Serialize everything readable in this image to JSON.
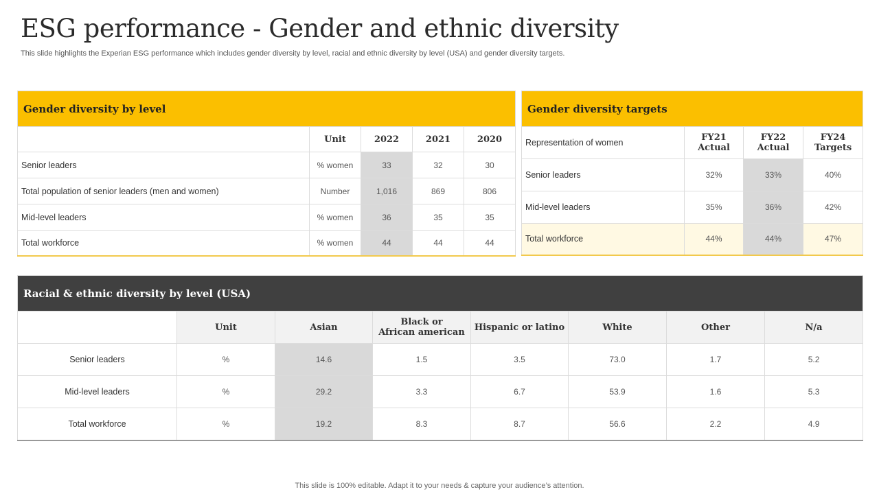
{
  "page": {
    "title": "ESG performance - Gender and ethnic diversity",
    "subtitle": "This slide highlights the Experian ESG performance which includes gender diversity by level, racial and ethnic diversity by level (USA) and gender diversity targets.",
    "footer": "This slide is 100% editable. Adapt it to your needs & capture your audience’s attention."
  },
  "gender_level": {
    "title": "Gender diversity by level",
    "columns": [
      "Unit",
      "2022",
      "2021",
      "2020"
    ],
    "rows": [
      {
        "label": "Senior leaders",
        "unit": "% women",
        "v2022": "33",
        "v2021": "32",
        "v2020": "30"
      },
      {
        "label": "Total population of senior leaders (men and women)",
        "unit": "Number",
        "v2022": "1,016",
        "v2021": "869",
        "v2020": "806"
      },
      {
        "label": "Mid-level  leaders",
        "unit": "% women",
        "v2022": "36",
        "v2021": "35",
        "v2020": "35"
      },
      {
        "label": "Total workforce",
        "unit": "% women",
        "v2022": "44",
        "v2021": "44",
        "v2020": "44"
      }
    ]
  },
  "gender_targets": {
    "title": "Gender diversity targets",
    "row_header": "Representation of women",
    "columns": [
      {
        "line1": "FY21",
        "line2": "Actual"
      },
      {
        "line1": "FY22",
        "line2": "Actual"
      },
      {
        "line1": "FY24",
        "line2": "Targets"
      }
    ],
    "rows": [
      {
        "label": "Senior leaders",
        "fy21": "32%",
        "fy22": "33%",
        "fy24": "40%"
      },
      {
        "label": "Mid-level  leaders",
        "fy21": "35%",
        "fy22": "36%",
        "fy24": "42%"
      },
      {
        "label": "Total workforce",
        "fy21": "44%",
        "fy22": "44%",
        "fy24": "47%"
      }
    ]
  },
  "racial": {
    "title": "Racial & ethnic diversity by level (USA)",
    "columns": [
      "Unit",
      "Asian",
      "Black or\nAfrican american",
      "Hispanic or latino",
      "White",
      "Other",
      "N/a"
    ],
    "rows": [
      {
        "label": "Senior leaders",
        "unit": "%",
        "asian": "14.6",
        "black": "1.5",
        "hispanic": "3.5",
        "white": "73.0",
        "other": "1.7",
        "na": "5.2"
      },
      {
        "label": "Mid-level  leaders",
        "unit": "%",
        "asian": "29.2",
        "black": "3.3",
        "hispanic": "6.7",
        "white": "53.9",
        "other": "1.6",
        "na": "5.3"
      },
      {
        "label": "Total workforce",
        "unit": "%",
        "asian": "19.2",
        "black": "8.3",
        "hispanic": "8.7",
        "white": "56.6",
        "other": "2.2",
        "na": "4.9"
      }
    ]
  },
  "colors": {
    "accent": "#fbbf00",
    "dark_header": "#404040",
    "highlight": "#d9d9d9",
    "light_yellow": "#fff9e3"
  }
}
